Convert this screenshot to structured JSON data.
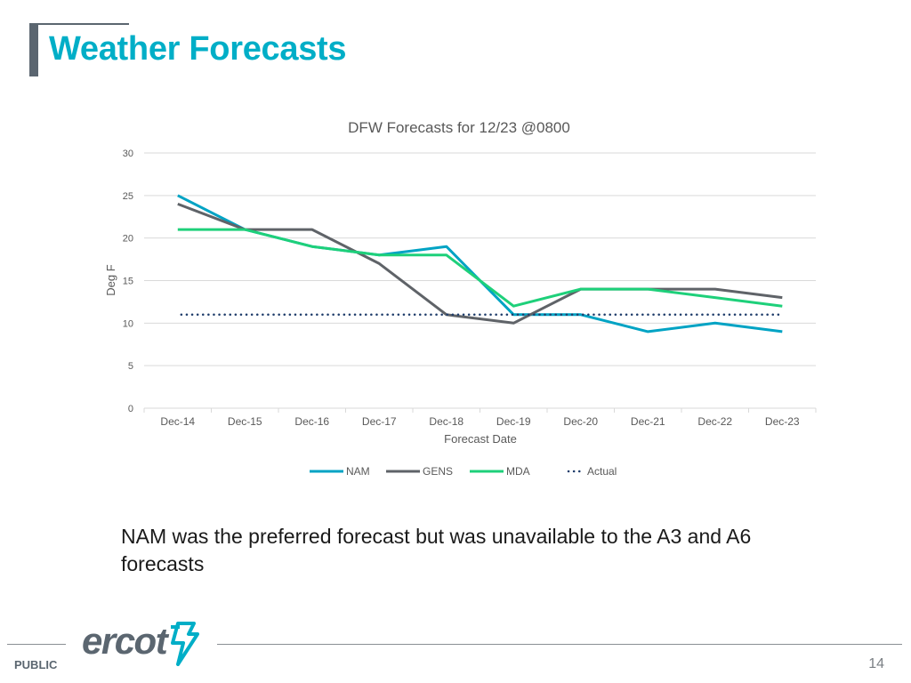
{
  "slide": {
    "title": "Weather Forecasts",
    "note": "NAM was the preferred forecast but was unavailable to the A3 and A6 forecasts",
    "footer": {
      "classification": "PUBLIC",
      "page_number": "14",
      "logo_text": "ercot"
    }
  },
  "chart_data": {
    "type": "line",
    "title": "DFW Forecasts for 12/23 @0800",
    "xlabel": "Forecast Date",
    "ylabel": "Deg F",
    "ylim": [
      0,
      30
    ],
    "yticks": [
      0,
      5,
      10,
      15,
      20,
      25,
      30
    ],
    "grid": true,
    "legend_position": "bottom",
    "categories": [
      "Dec-14",
      "Dec-15",
      "Dec-16",
      "Dec-17",
      "Dec-18",
      "Dec-19",
      "Dec-20",
      "Dec-21",
      "Dec-22",
      "Dec-23"
    ],
    "series": [
      {
        "name": "NAM",
        "values": [
          25,
          21,
          19,
          18,
          19,
          11,
          11,
          9,
          10,
          9
        ],
        "color": "#00a3c4",
        "style": "solid"
      },
      {
        "name": "GENS",
        "values": [
          24,
          21,
          21,
          17,
          11,
          10,
          14,
          14,
          14,
          13
        ],
        "color": "#5f6368",
        "style": "solid"
      },
      {
        "name": "MDA",
        "values": [
          21,
          21,
          19,
          18,
          18,
          12,
          14,
          14,
          13,
          12
        ],
        "color": "#1ed07a",
        "style": "solid"
      },
      {
        "name": "Actual",
        "values": [
          11,
          11,
          11,
          11,
          11,
          11,
          11,
          11,
          11,
          11
        ],
        "color": "#1f3d6b",
        "style": "dotted"
      }
    ]
  },
  "colors": {
    "title": "#00aec7",
    "grid": "#d9d9d9",
    "axis_text": "#595959",
    "accent_gray": "#5b6670",
    "logo_accent": "#00aec7"
  }
}
